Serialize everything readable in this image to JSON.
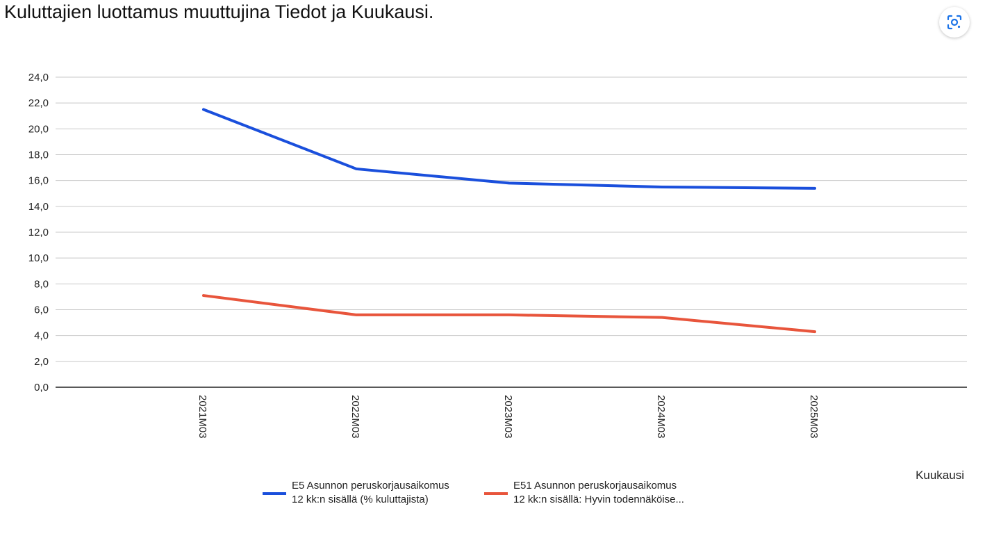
{
  "chart_data": {
    "type": "line",
    "title": "Kuluttajien luottamus muuttujina Tiedot ja Kuukausi.",
    "xlabel": "Kuukausi",
    "ylabel": "",
    "categories": [
      "2021M03",
      "2022M03",
      "2023M03",
      "2024M03",
      "2025M03"
    ],
    "ylim": [
      0,
      24
    ],
    "yticks": [
      "0,0",
      "2,0",
      "4,0",
      "6,0",
      "8,0",
      "10,0",
      "12,0",
      "14,0",
      "16,0",
      "18,0",
      "20,0",
      "22,0",
      "24,0"
    ],
    "grid": true,
    "legend": "bottom",
    "series": [
      {
        "name": "E5 Asunnon peruskorjausaikomus 12 kk:n sisällä (% kuluttajista)",
        "legend_lines": [
          "E5 Asunnon peruskorjausaikomus",
          "12 kk:n sisällä (% kuluttajista)"
        ],
        "color": "#1a4fdc",
        "values": [
          21.5,
          16.9,
          15.8,
          15.5,
          15.4
        ]
      },
      {
        "name": "E51 Asunnon peruskorjausaikomus 12 kk:n sisällä: Hyvin todennäköise...",
        "legend_lines": [
          "E51 Asunnon peruskorjausaikomus",
          "12 kk:n sisällä: Hyvin todennäköise..."
        ],
        "color": "#e8553c",
        "values": [
          7.1,
          5.6,
          5.6,
          5.4,
          4.3
        ]
      }
    ]
  },
  "toolbar": {
    "lens_icon": "google-lens-icon"
  }
}
